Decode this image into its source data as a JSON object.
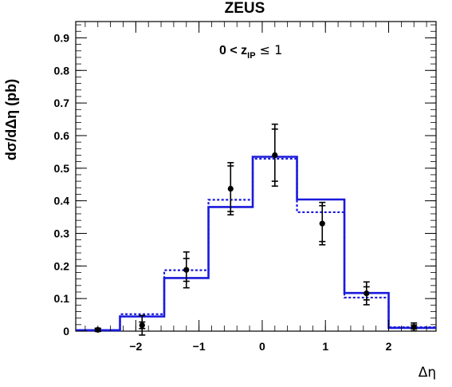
{
  "chart_data": {
    "type": "line",
    "title": "ZEUS",
    "annotation": {
      "prefix": "0 < z",
      "subscript": "IP",
      "suffix": " ≤ 1"
    },
    "xlabel": "Δη",
    "ylabel": "dσ/dΔη (pb)",
    "xlim": [
      -2.95,
      2.75
    ],
    "ylim": [
      0,
      0.95
    ],
    "x_ticks": [
      -2,
      -1,
      0,
      1,
      2
    ],
    "x_tick_labels": [
      "−2",
      "−1",
      "0",
      "1",
      "2"
    ],
    "y_ticks": [
      0,
      0.1,
      0.2,
      0.3,
      0.4,
      0.5,
      0.6,
      0.7,
      0.8,
      0.9
    ],
    "y_tick_labels": [
      "0",
      "0.1",
      "0.2",
      "0.3",
      "0.4",
      "0.5",
      "0.6",
      "0.7",
      "0.8",
      "0.9"
    ],
    "bin_edges": [
      -2.95,
      -2.25,
      -1.55,
      -0.85,
      -0.15,
      0.55,
      1.3,
      2.0,
      2.75
    ],
    "series": [
      {
        "style": "solid",
        "color": "#1a1adc",
        "values": [
          0.003,
          0.045,
          0.163,
          0.381,
          0.535,
          0.404,
          0.117,
          0.01
        ]
      },
      {
        "style": "dotted",
        "color": "#1a1adc",
        "values": [
          0.002,
          0.052,
          0.187,
          0.403,
          0.529,
          0.365,
          0.103,
          0.012
        ]
      },
      {
        "style": "points",
        "color": "#000000",
        "x": [
          -2.6,
          -1.9,
          -1.2,
          -0.5,
          0.2,
          0.95,
          1.65,
          2.4
        ],
        "y": [
          0.004,
          0.018,
          0.188,
          0.437,
          0.54,
          0.33,
          0.116,
          0.013
        ],
        "err_inner": [
          0.003,
          0.01,
          0.035,
          0.07,
          0.08,
          0.055,
          0.02,
          0.006
        ],
        "err_outer": [
          0.005,
          0.03,
          0.055,
          0.08,
          0.095,
          0.065,
          0.035,
          0.012
        ]
      }
    ]
  }
}
